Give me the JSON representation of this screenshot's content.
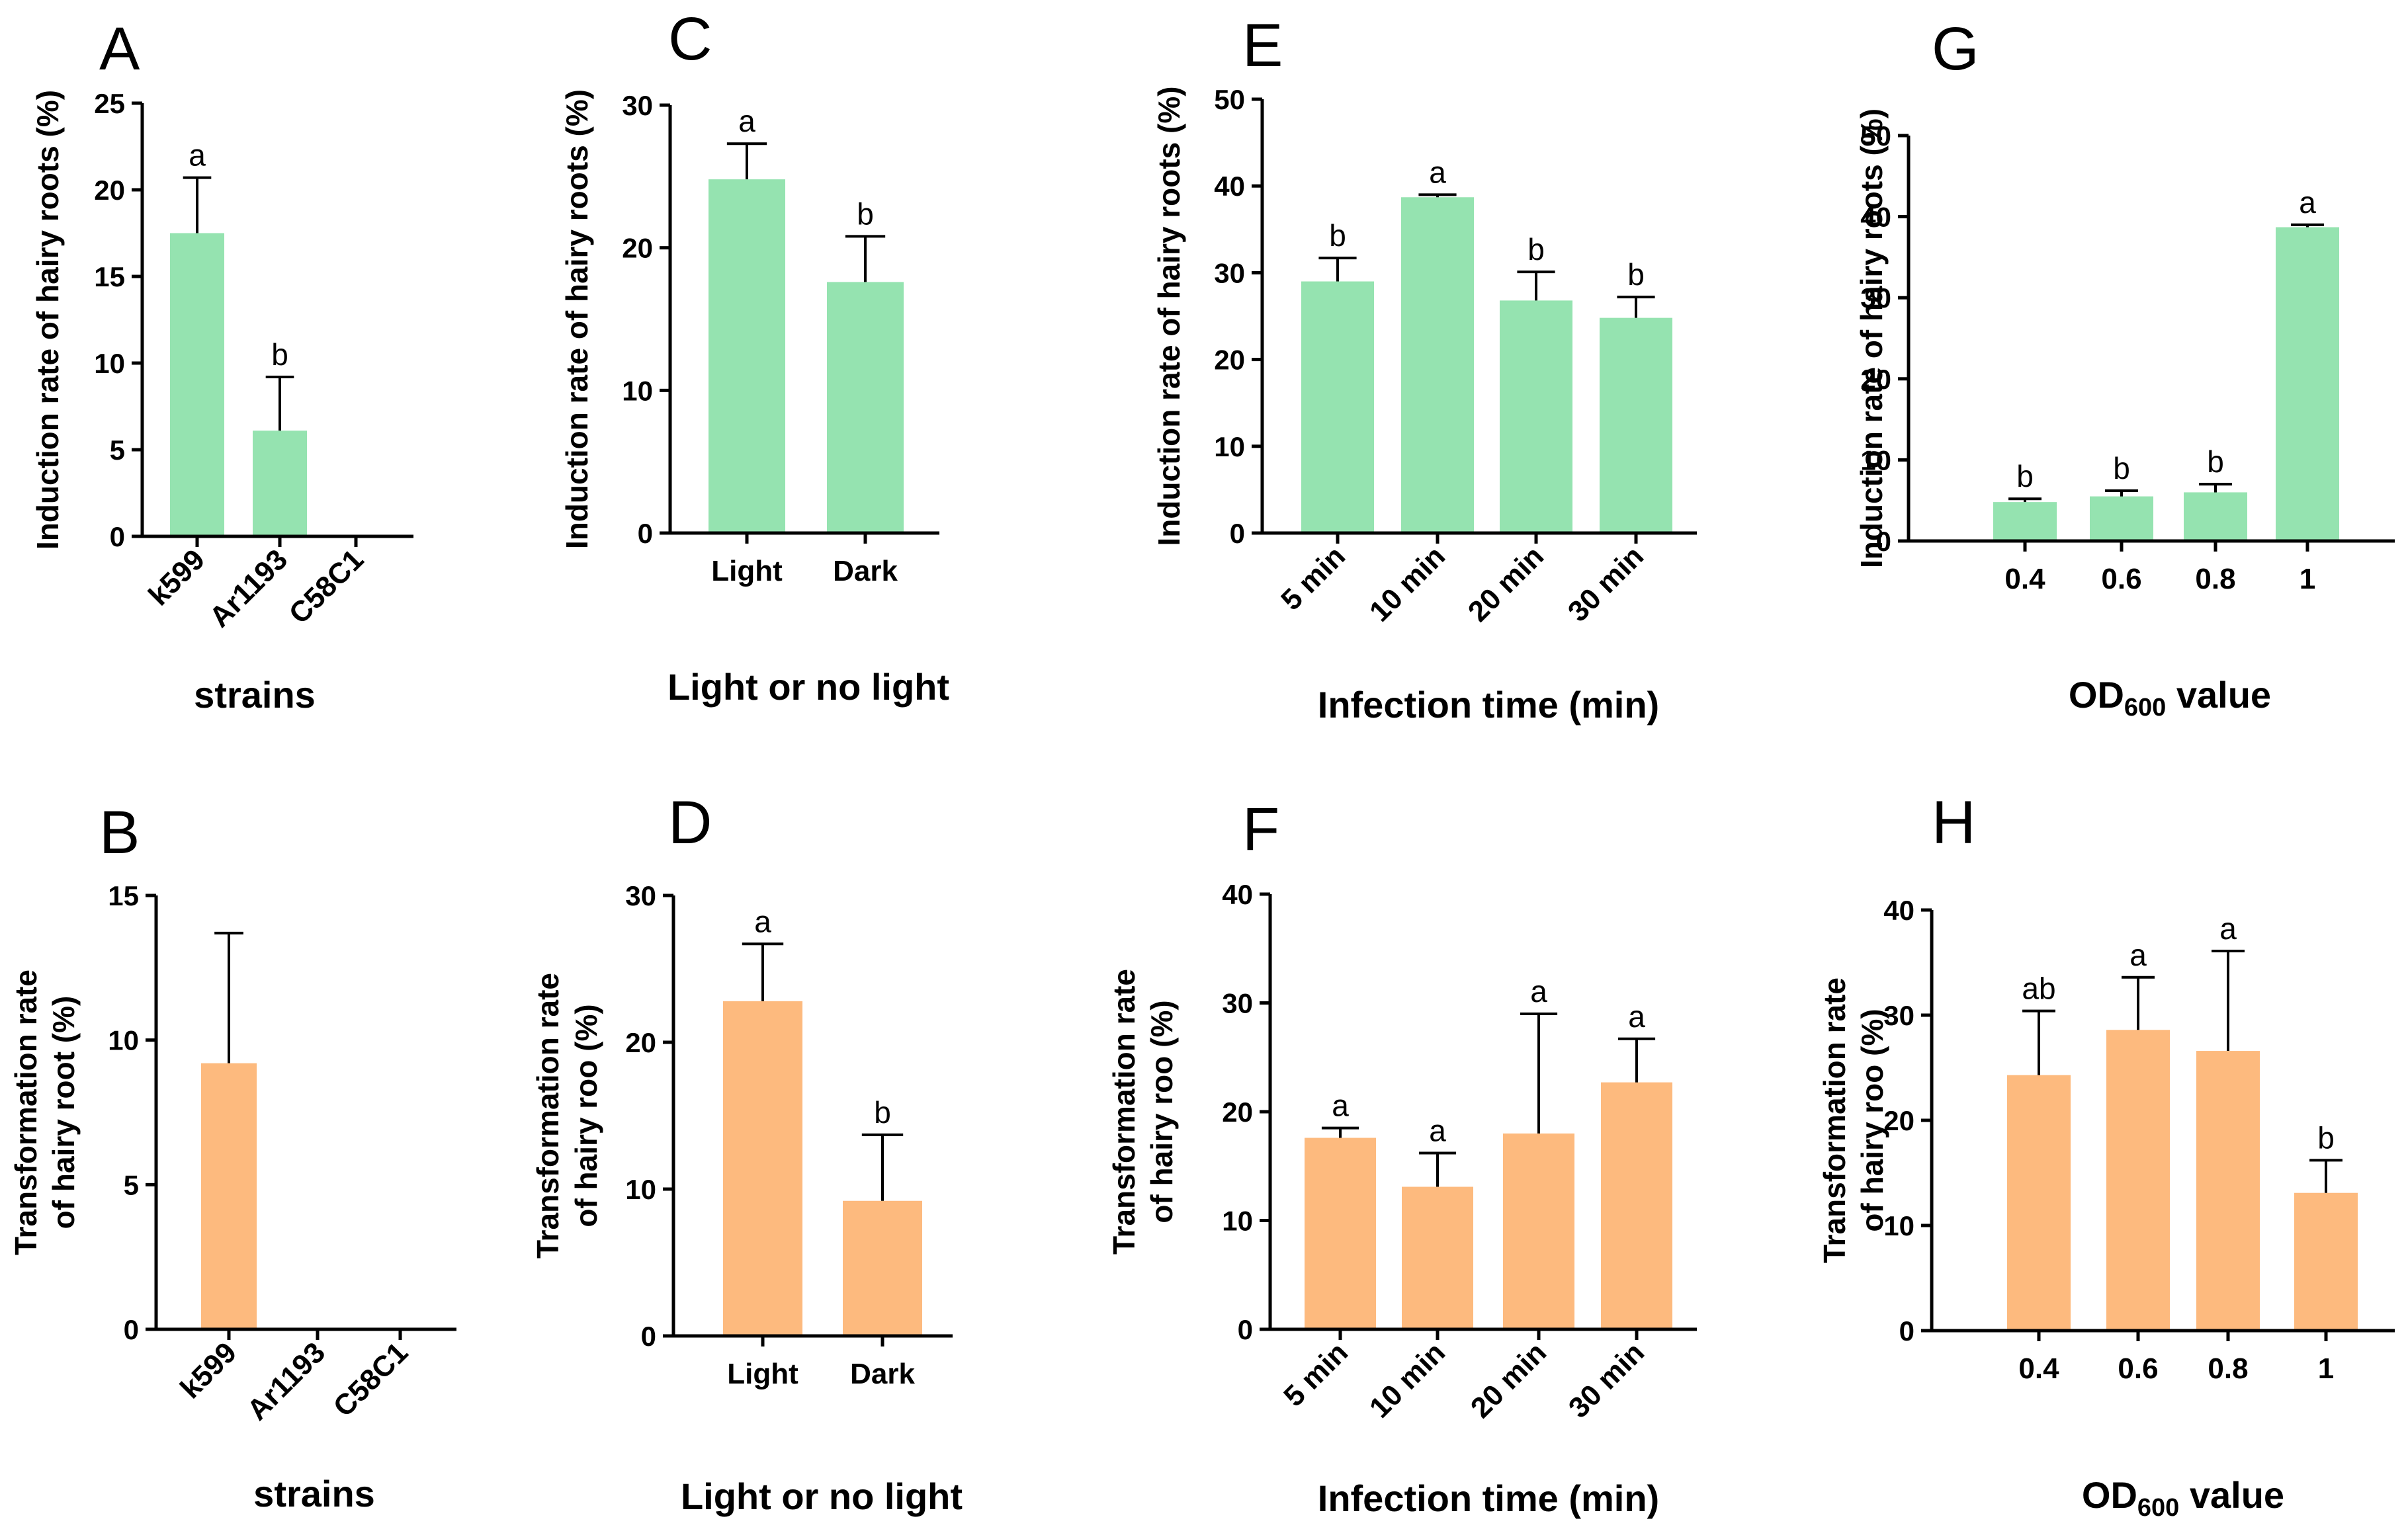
{
  "chart_data": [
    {
      "id": "A",
      "type": "bar",
      "panel_label": "A",
      "color": "#95E3B0",
      "categories": [
        "k599",
        "Ar1193",
        "C58C1"
      ],
      "values": [
        17.5,
        6.1,
        0
      ],
      "errors": [
        3.2,
        3.1,
        null
      ],
      "sig_letters": [
        "a",
        "b",
        ""
      ],
      "ylim": [
        0,
        25
      ],
      "yticks": [
        0,
        5,
        10,
        15,
        20,
        25
      ],
      "ylabel": [
        "Induction rate of hairy roots (%)"
      ],
      "xlabel": "strains",
      "rotated": true
    },
    {
      "id": "B",
      "type": "bar",
      "panel_label": "B",
      "color": "#FDBA7E",
      "categories": [
        "k599",
        "Ar1193",
        "C58C1"
      ],
      "values": [
        9.2,
        0,
        0
      ],
      "errors": [
        4.5,
        null,
        null
      ],
      "sig_letters": [
        "",
        "",
        ""
      ],
      "ylim": [
        0,
        15
      ],
      "yticks": [
        0,
        5,
        10,
        15
      ],
      "ylabel": [
        "Transformation rate",
        "of hairy root (%)"
      ],
      "xlabel": "strains",
      "rotated": true
    },
    {
      "id": "C",
      "type": "bar",
      "panel_label": "C",
      "color": "#95E3B0",
      "categories": [
        "Light",
        "Dark"
      ],
      "values": [
        24.8,
        17.6
      ],
      "errors": [
        2.5,
        3.2
      ],
      "sig_letters": [
        "a",
        "b"
      ],
      "ylim": [
        0,
        30
      ],
      "yticks": [
        0,
        10,
        20,
        30
      ],
      "ylabel": [
        "Induction rate of hairy roots (%)"
      ],
      "xlabel": "Light or no light",
      "rotated": false
    },
    {
      "id": "D",
      "type": "bar",
      "panel_label": "D",
      "color": "#FDBA7E",
      "categories": [
        "Light",
        "Dark"
      ],
      "values": [
        22.8,
        9.2
      ],
      "errors": [
        3.9,
        4.5
      ],
      "sig_letters": [
        "a",
        "b"
      ],
      "ylim": [
        0,
        30
      ],
      "yticks": [
        0,
        10,
        20,
        30
      ],
      "ylabel": [
        "Transformation rate",
        "of hairy roo (%)"
      ],
      "xlabel": "Light or no light",
      "rotated": false
    },
    {
      "id": "E",
      "type": "bar",
      "panel_label": "E",
      "color": "#95E3B0",
      "categories": [
        "5 min",
        "10 min",
        "20 min",
        "30 min"
      ],
      "values": [
        29.0,
        38.7,
        26.8,
        24.8
      ],
      "errors": [
        2.7,
        0.3,
        3.3,
        2.4
      ],
      "sig_letters": [
        "b",
        "a",
        "b",
        "b"
      ],
      "ylim": [
        0,
        50
      ],
      "yticks": [
        0,
        10,
        20,
        30,
        40,
        50
      ],
      "ylabel": [
        "Induction rate of hairy roots (%)"
      ],
      "xlabel": "Infection time (min)",
      "rotated": true
    },
    {
      "id": "F",
      "type": "bar",
      "panel_label": "F",
      "color": "#FDBA7E",
      "categories": [
        "5 min",
        "10 min",
        "20 min",
        "30 min"
      ],
      "values": [
        17.6,
        13.1,
        18.0,
        22.7
      ],
      "errors": [
        0.9,
        3.1,
        11.0,
        4.0
      ],
      "sig_letters": [
        "a",
        "a",
        "a",
        "a"
      ],
      "ylim": [
        0,
        40
      ],
      "yticks": [
        0,
        10,
        20,
        30,
        40
      ],
      "ylabel": [
        "Transformation rate",
        "of hairy roo (%)"
      ],
      "xlabel": "Infection time (min)",
      "rotated": true
    },
    {
      "id": "G",
      "type": "bar",
      "panel_label": "G",
      "color": "#95E3B0",
      "categories": [
        "0.4",
        "0.6",
        "0.8",
        "1"
      ],
      "values": [
        4.8,
        5.5,
        6.0,
        38.7
      ],
      "errors": [
        0.4,
        0.7,
        1.0,
        0.3
      ],
      "sig_letters": [
        "b",
        "b",
        "b",
        "a"
      ],
      "ylim": [
        0,
        50
      ],
      "yticks": [
        0,
        10,
        20,
        30,
        40,
        50
      ],
      "ylabel": [
        "Induction rate of hairy roots (%)"
      ],
      "xlabel_main": "OD",
      "xlabel_sub": "600",
      "xlabel_tail": " value",
      "rotated": false
    },
    {
      "id": "H",
      "type": "bar",
      "panel_label": "H",
      "color": "#FDBA7E",
      "categories": [
        "0.4",
        "0.6",
        "0.8",
        "1"
      ],
      "values": [
        24.3,
        28.6,
        26.6,
        13.1
      ],
      "errors": [
        6.1,
        5.0,
        9.5,
        3.1
      ],
      "sig_letters": [
        "ab",
        "a",
        "a",
        "b"
      ],
      "ylim": [
        0,
        40
      ],
      "yticks": [
        0,
        10,
        20,
        30,
        40
      ],
      "ylabel": [
        "Transformation rate",
        "of hairy roo (%)"
      ],
      "xlabel_main": "OD",
      "xlabel_sub": "600",
      "xlabel_tail": " value",
      "rotated": false
    }
  ]
}
